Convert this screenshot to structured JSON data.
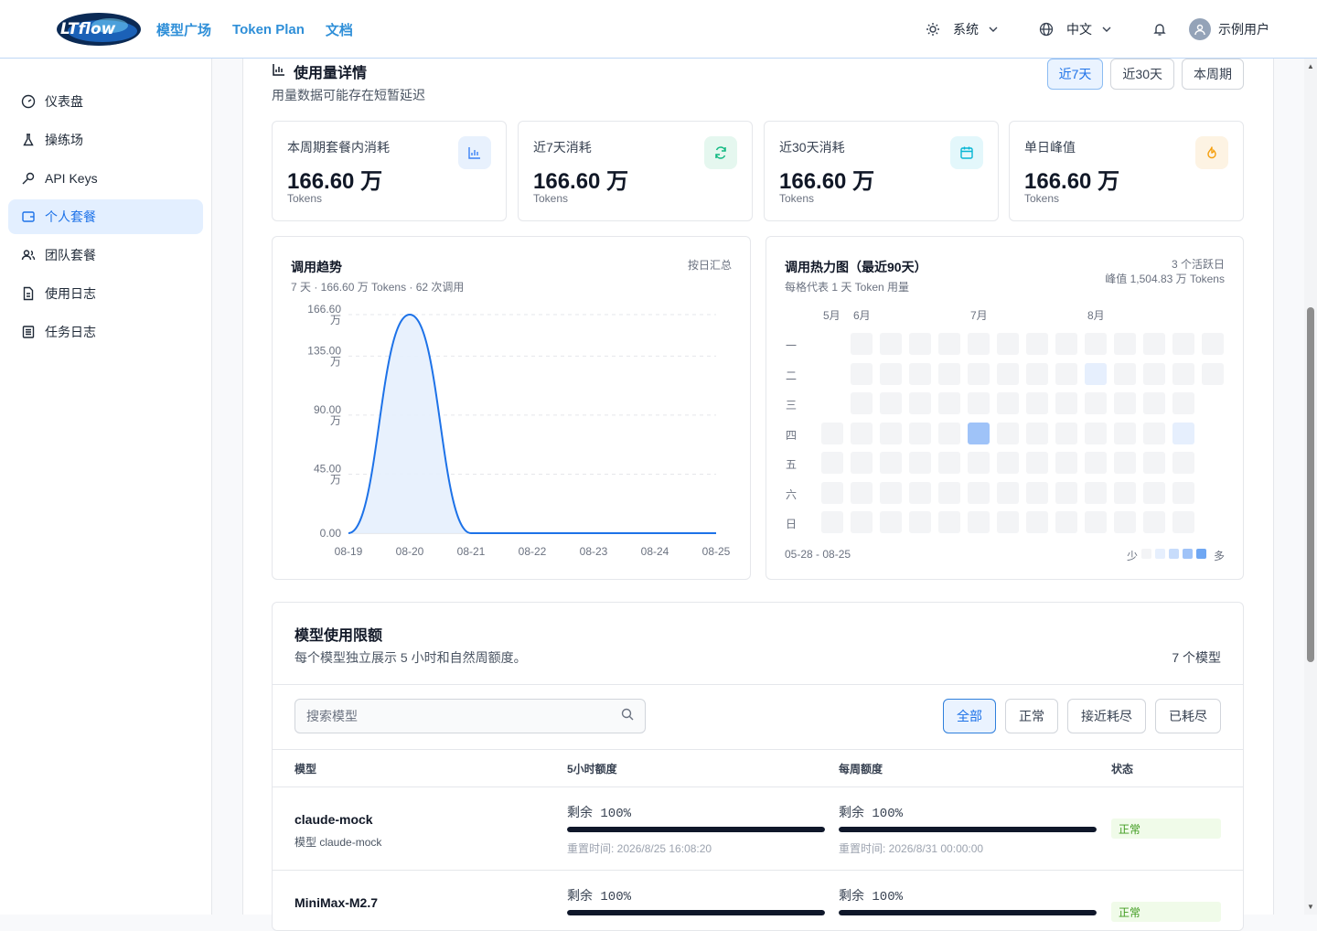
{
  "header": {
    "nav": [
      "模型广场",
      "Token Plan",
      "文档"
    ],
    "theme_label": "系统",
    "lang_label": "中文",
    "user_name": "示例用户"
  },
  "sidebar": {
    "items": [
      {
        "label": "仪表盘",
        "icon": "gauge-icon",
        "active": false
      },
      {
        "label": "操练场",
        "icon": "flask-icon",
        "active": false
      },
      {
        "label": "API Keys",
        "icon": "key-icon",
        "active": false
      },
      {
        "label": "个人套餐",
        "icon": "wallet-icon",
        "active": true
      },
      {
        "label": "团队套餐",
        "icon": "users-icon",
        "active": false
      },
      {
        "label": "使用日志",
        "icon": "file-icon",
        "active": false
      },
      {
        "label": "任务日志",
        "icon": "list-icon",
        "active": false
      }
    ]
  },
  "usage": {
    "title": "使用量详情",
    "subtitle": "用量数据可能存在短暂延迟",
    "ranges": [
      "近7天",
      "近30天",
      "本周期"
    ],
    "active_range": 0,
    "stats": [
      {
        "label": "本周期套餐内消耗",
        "value": "166.60 万",
        "unit": "Tokens",
        "icon": "bar-chart-icon",
        "color": "#3b82f6",
        "bg": "#e8f1fd"
      },
      {
        "label": "近7天消耗",
        "value": "166.60 万",
        "unit": "Tokens",
        "icon": "refresh-icon",
        "color": "#10b981",
        "bg": "#e5f7ef"
      },
      {
        "label": "近30天消耗",
        "value": "166.60 万",
        "unit": "Tokens",
        "icon": "calendar-icon",
        "color": "#06b6d4",
        "bg": "#e3f7fb"
      },
      {
        "label": "单日峰值",
        "value": "166.60 万",
        "unit": "Tokens",
        "icon": "flame-icon",
        "color": "#f59e0b",
        "bg": "#fdf3e3"
      }
    ]
  },
  "trend": {
    "title": "调用趋势",
    "subtitle": "7 天 · 166.60 万 Tokens · 62 次调用",
    "aggregate": "按日汇总"
  },
  "heatmap": {
    "title": "调用热力图（最近90天）",
    "subtitle": "每格代表 1 天 Token 用量",
    "active_days": "3 个活跃日",
    "peak": "峰值 1,504.83 万 Tokens",
    "months": [
      "5月",
      "6月",
      "7月",
      "8月"
    ],
    "weekdays": [
      "一",
      "二",
      "三",
      "四",
      "五",
      "六",
      "日"
    ],
    "date_range": "05-28 - 08-25",
    "legend_less": "少",
    "legend_more": "多"
  },
  "chart_data": {
    "type": "area",
    "x": [
      "08-19",
      "08-20",
      "08-21",
      "08-22",
      "08-23",
      "08-24",
      "08-25"
    ],
    "values": [
      0,
      166.6,
      0,
      0,
      0,
      0,
      0
    ],
    "ylim": [
      0,
      166.6
    ],
    "yticks": [
      "166.60 万",
      "135.00 万",
      "90.00 万",
      "45.00 万",
      "0.00"
    ],
    "ytick_values": [
      166.6,
      135,
      90,
      45,
      0
    ],
    "grid": true,
    "color": "#1d72e8"
  },
  "quota": {
    "title": "模型使用限额",
    "subtitle": "每个模型独立展示 5 小时和自然周额度。",
    "count": "7 个模型",
    "search_placeholder": "搜索模型",
    "filters": [
      "全部",
      "正常",
      "接近耗尽",
      "已耗尽"
    ],
    "columns": [
      "模型",
      "5小时额度",
      "每周额度",
      "状态"
    ],
    "rows": [
      {
        "name": "claude-mock",
        "sub": "模型 claude-mock",
        "h5_remaining": "剩余 100%",
        "h5_fill": 1.0,
        "h5_reset": "重置时间: 2026/8/25 16:08:20",
        "week_remaining": "剩余 100%",
        "week_fill": 1.0,
        "week_reset": "重置时间: 2026/8/31 00:00:00",
        "status": "正常"
      },
      {
        "name": "MiniMax-M2.7",
        "sub": "",
        "h5_remaining": "剩余 100%",
        "h5_fill": 1.0,
        "h5_reset": "",
        "week_remaining": "剩余 100%",
        "week_fill": 1.0,
        "week_reset": "",
        "status": "正常"
      }
    ]
  }
}
